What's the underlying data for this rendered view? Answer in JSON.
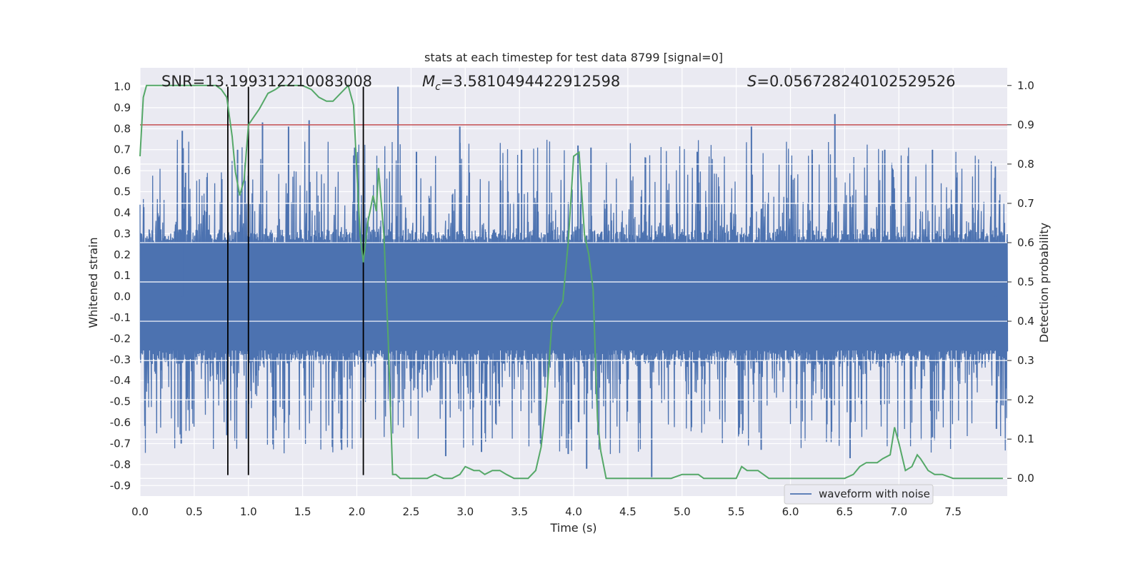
{
  "chart_data": {
    "type": "line",
    "title": "stats at each timestep for test data 8799 [signal=0]",
    "xlabel": "Time (s)",
    "ylabel": "Whitened strain",
    "ylabel_right": "Detection probability",
    "xlim": [
      0,
      8
    ],
    "ylim": [
      -0.95,
      1.09
    ],
    "ylim_right": [
      -0.045,
      1.045
    ],
    "xticks": [
      "0.0",
      "0.5",
      "1.0",
      "1.5",
      "2.0",
      "2.5",
      "3.0",
      "3.5",
      "4.0",
      "4.5",
      "5.0",
      "5.5",
      "6.0",
      "6.5",
      "7.0",
      "7.5"
    ],
    "yticks": [
      "1.0",
      "0.9",
      "0.8",
      "0.7",
      "0.6",
      "0.5",
      "0.4",
      "0.3",
      "0.2",
      "0.1",
      "0.0",
      "-0.1",
      "-0.2",
      "-0.3",
      "-0.4",
      "-0.5",
      "-0.6",
      "-0.7",
      "-0.8",
      "-0.9"
    ],
    "yticks_right": [
      "1.0",
      "0.9",
      "0.8",
      "0.7",
      "0.6",
      "0.5",
      "0.4",
      "0.3",
      "0.2",
      "0.1",
      "0.0"
    ],
    "grid": true,
    "legend_position": "bottom-right",
    "annotations": {
      "snr": "SNR=13.199312210083008",
      "mc_symbol": "M",
      "mc_sub": "c",
      "mc_value": "=3.5810494422912598",
      "s_symbol": "S",
      "s_value": "=0.056728240102529526"
    },
    "threshold": {
      "y_right": 0.9,
      "color": "#c44e52"
    },
    "marker_lines": [
      0.81,
      1.0,
      2.06
    ],
    "marker_line_range": [
      -0.85,
      1.0
    ],
    "series": [
      {
        "name": "waveform with noise",
        "color": "#4c72b0",
        "axis": "left",
        "core_amplitude": 0.27,
        "spike_amplitude": 0.48,
        "peaks": [
          {
            "t": 0.38,
            "v": -0.7
          },
          {
            "t": 0.39,
            "v": 0.62
          },
          {
            "t": 0.39,
            "v": 0.79
          },
          {
            "t": 0.42,
            "v": 0.59
          },
          {
            "t": 0.8,
            "v": -0.66
          },
          {
            "t": 0.9,
            "v": 0.7
          },
          {
            "t": 0.98,
            "v": -0.68
          },
          {
            "t": 1.13,
            "v": 0.83
          },
          {
            "t": 1.37,
            "v": 0.81
          },
          {
            "t": 1.56,
            "v": 0.84
          },
          {
            "t": 1.86,
            "v": -0.73
          },
          {
            "t": 1.98,
            "v": 0.71
          },
          {
            "t": 2.38,
            "v": 1.0
          },
          {
            "t": 2.55,
            "v": 0.69
          },
          {
            "t": 2.82,
            "v": -0.76
          },
          {
            "t": 2.95,
            "v": 0.81
          },
          {
            "t": 3.15,
            "v": -0.74
          },
          {
            "t": 3.52,
            "v": 0.7
          },
          {
            "t": 3.95,
            "v": -0.75
          },
          {
            "t": 4.04,
            "v": 0.72
          },
          {
            "t": 4.12,
            "v": -0.82
          },
          {
            "t": 4.16,
            "v": 0.71
          },
          {
            "t": 4.72,
            "v": -0.86
          },
          {
            "t": 5.14,
            "v": 0.69
          },
          {
            "t": 5.64,
            "v": 0.81
          },
          {
            "t": 5.73,
            "v": -0.73
          },
          {
            "t": 6.2,
            "v": 0.7
          },
          {
            "t": 6.41,
            "v": 0.87
          },
          {
            "t": 6.55,
            "v": -0.77
          },
          {
            "t": 6.87,
            "v": 0.7
          },
          {
            "t": 7.31,
            "v": 0.7
          },
          {
            "t": 7.31,
            "v": -0.67
          },
          {
            "t": 7.89,
            "v": 0.62
          },
          {
            "t": 7.9,
            "v": -0.63
          }
        ]
      },
      {
        "name": "",
        "color": "#55a868",
        "axis": "right",
        "x": [
          0.0,
          0.03,
          0.06,
          0.12,
          0.2,
          0.35,
          0.5,
          0.6,
          0.7,
          0.75,
          0.8,
          0.85,
          0.88,
          0.92,
          0.96,
          1.0,
          1.05,
          1.1,
          1.18,
          1.25,
          1.3,
          1.35,
          1.42,
          1.5,
          1.58,
          1.65,
          1.72,
          1.78,
          1.85,
          1.92,
          1.97,
          2.03,
          2.06,
          2.1,
          2.15,
          2.18,
          2.2,
          2.22,
          2.25,
          2.29,
          2.33,
          2.36,
          2.4,
          2.45,
          2.55,
          2.65,
          2.72,
          2.8,
          2.88,
          2.95,
          3.0,
          3.08,
          3.13,
          3.18,
          3.25,
          3.32,
          3.38,
          3.45,
          3.52,
          3.58,
          3.65,
          3.7,
          3.75,
          3.8,
          3.9,
          3.95,
          4.0,
          4.05,
          4.1,
          4.14,
          4.18,
          4.22,
          4.25,
          4.3,
          4.35,
          4.4,
          4.5,
          4.6,
          4.7,
          4.8,
          4.9,
          5.0,
          5.1,
          5.15,
          5.2,
          5.3,
          5.4,
          5.5,
          5.55,
          5.6,
          5.65,
          5.7,
          5.75,
          5.8,
          5.85,
          5.9,
          6.0,
          6.1,
          6.2,
          6.3,
          6.4,
          6.5,
          6.58,
          6.64,
          6.7,
          6.75,
          6.8,
          6.85,
          6.92,
          6.96,
          7.0,
          7.06,
          7.12,
          7.17,
          7.2,
          7.27,
          7.33,
          7.4,
          7.5,
          7.6,
          7.7,
          7.8,
          7.9,
          7.96
        ],
        "y": [
          0.82,
          0.97,
          1.0,
          1.0,
          1.0,
          1.0,
          1.0,
          1.0,
          1.0,
          0.99,
          0.97,
          0.87,
          0.78,
          0.72,
          0.76,
          0.9,
          0.92,
          0.94,
          0.98,
          0.99,
          1.0,
          1.0,
          1.0,
          1.0,
          0.99,
          0.97,
          0.96,
          0.96,
          0.98,
          1.0,
          0.95,
          0.62,
          0.55,
          0.65,
          0.72,
          0.68,
          0.79,
          0.72,
          0.62,
          0.35,
          0.01,
          0.01,
          0.0,
          0.0,
          0.0,
          0.0,
          0.01,
          0.0,
          0.0,
          0.01,
          0.03,
          0.02,
          0.02,
          0.01,
          0.02,
          0.02,
          0.01,
          0.0,
          0.0,
          0.0,
          0.02,
          0.08,
          0.2,
          0.4,
          0.45,
          0.6,
          0.82,
          0.83,
          0.62,
          0.57,
          0.48,
          0.15,
          0.07,
          0.0,
          0.0,
          0.0,
          0.0,
          0.0,
          0.0,
          0.0,
          0.0,
          0.01,
          0.01,
          0.01,
          0.0,
          0.0,
          0.0,
          0.0,
          0.03,
          0.02,
          0.02,
          0.02,
          0.01,
          0.0,
          0.0,
          0.0,
          0.0,
          0.0,
          0.0,
          0.0,
          0.0,
          0.0,
          0.01,
          0.03,
          0.04,
          0.04,
          0.04,
          0.05,
          0.06,
          0.13,
          0.09,
          0.02,
          0.03,
          0.06,
          0.05,
          0.02,
          0.01,
          0.01,
          0.0,
          0.0,
          0.0,
          0.0,
          0.0,
          0.0
        ]
      }
    ]
  }
}
